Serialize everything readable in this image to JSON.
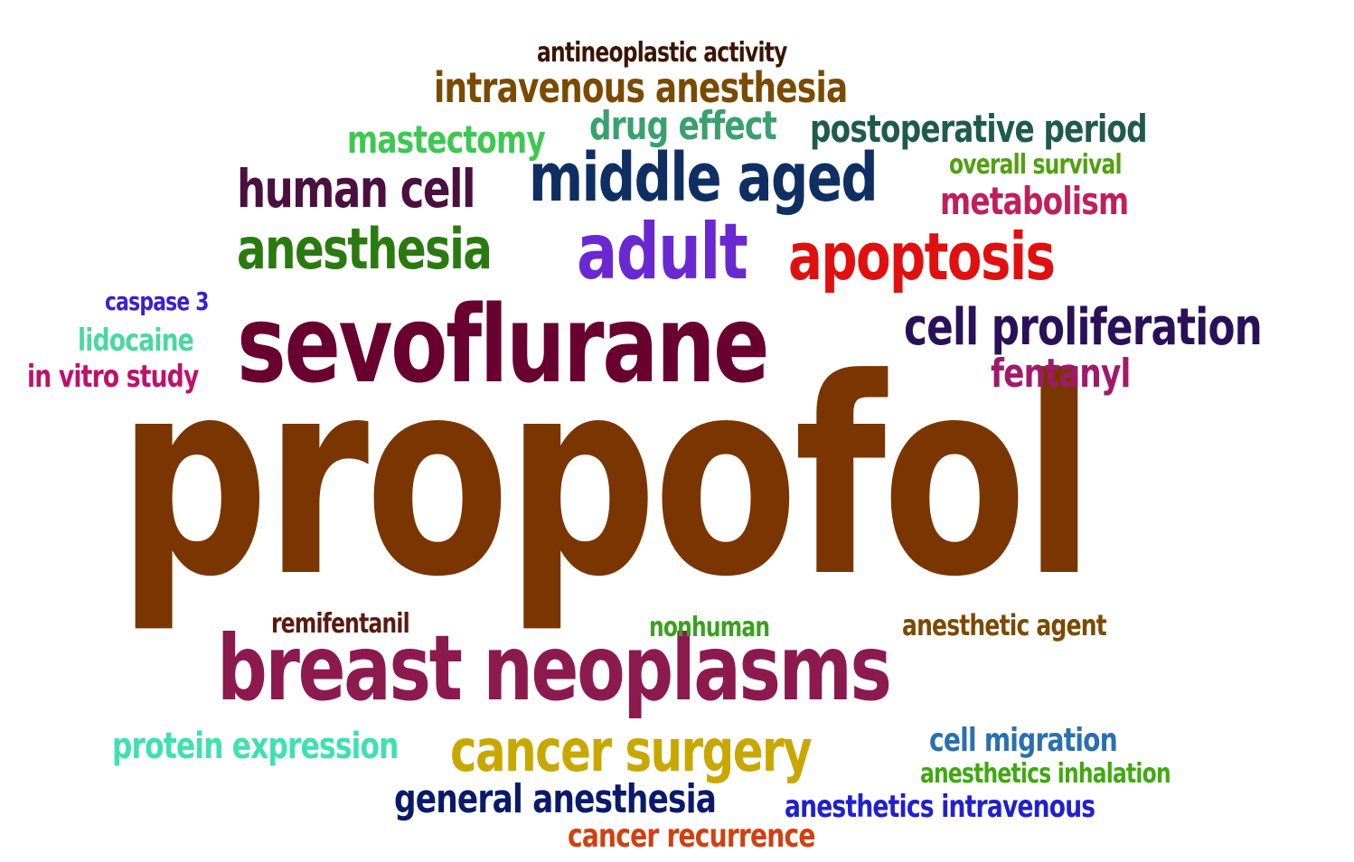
{
  "words": [
    {
      "text": "propofol",
      "color": "#7a3500"
    },
    {
      "text": "sevoflurane",
      "color": "#680030"
    },
    {
      "text": "breast neoplasms",
      "color": "#8c1a4e"
    },
    {
      "text": "middle aged",
      "color": "#0f2f63"
    },
    {
      "text": "adult",
      "color": "#6a28d0"
    },
    {
      "text": "apoptosis",
      "color": "#e01010"
    },
    {
      "text": "anesthesia",
      "color": "#2a7a10"
    },
    {
      "text": "human cell",
      "color": "#4a1040"
    },
    {
      "text": "cell proliferation",
      "color": "#2a1058"
    },
    {
      "text": "cancer surgery",
      "color": "#c8a800"
    },
    {
      "text": "general anesthesia",
      "color": "#0a1a6a"
    },
    {
      "text": "intravenous anesthesia",
      "color": "#7a4a00"
    },
    {
      "text": "antineoplastic activity",
      "color": "#3a1400"
    },
    {
      "text": "mastectomy",
      "color": "#3ec850"
    },
    {
      "text": "drug effect",
      "color": "#3aa070"
    },
    {
      "text": "postoperative period",
      "color": "#1f5a4a"
    },
    {
      "text": "overall survival",
      "color": "#50a010"
    },
    {
      "text": "metabolism",
      "color": "#c0205a"
    },
    {
      "text": "fentanyl",
      "color": "#a01a6a"
    },
    {
      "text": "caspase 3",
      "color": "#3a20d0"
    },
    {
      "text": "lidocaine",
      "color": "#4ad8a0"
    },
    {
      "text": "in vitro study",
      "color": "#c0106a"
    },
    {
      "text": "remifentanil",
      "color": "#5a1a10"
    },
    {
      "text": "nonhuman",
      "color": "#3aa020"
    },
    {
      "text": "anesthetic agent",
      "color": "#7a4a00"
    },
    {
      "text": "protein expression",
      "color": "#40e0b0"
    },
    {
      "text": "cell migration",
      "color": "#2a70b0"
    },
    {
      "text": "anesthetics  inhalation",
      "color": "#40a810"
    },
    {
      "text": "anesthetics  intravenous",
      "color": "#2020d0"
    },
    {
      "text": "cancer recurrence",
      "color": "#d04010"
    }
  ]
}
